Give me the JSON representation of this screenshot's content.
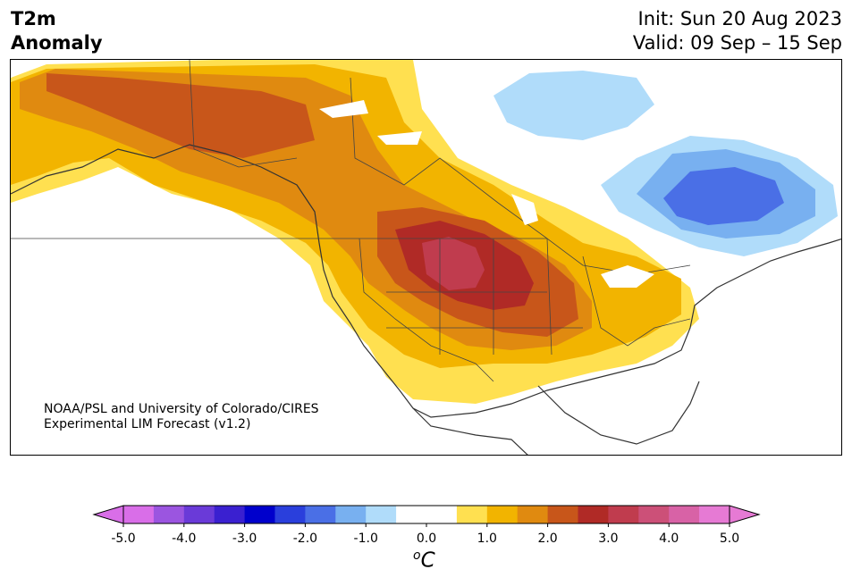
{
  "title": {
    "left_line1": "T2m",
    "left_line2": "Anomaly",
    "init": "Init: Sun 20 Aug 2023",
    "valid": "Valid: 09 Sep – 15 Sep"
  },
  "credit": {
    "line1": "NOAA/PSL and University of Colorado/CIRES",
    "line2": "Experimental LIM Forecast (v1.2)"
  },
  "colorbar": {
    "unit_base": "C",
    "unit_sup": "o",
    "colors": [
      "#d96ee8",
      "#9b55e0",
      "#6a3ad8",
      "#3a20d0",
      "#0000cc",
      "#2a3fdc",
      "#4a6fe6",
      "#78b0f0",
      "#b0dcfa",
      "#ffffff",
      "#ffffff",
      "#ffe050",
      "#f2b400",
      "#e08a10",
      "#c8561a",
      "#b02a26",
      "#c03c4e",
      "#cc5078",
      "#d862a6",
      "#e67ad4"
    ],
    "under_color": "#d96ee8",
    "over_color": "#e67ad4",
    "ticks": [
      "-5.0",
      "-4.0",
      "-3.0",
      "-2.0",
      "-1.0",
      "0.0",
      "1.0",
      "2.0",
      "3.0",
      "4.0",
      "5.0"
    ]
  },
  "legend_colors": {
    "plus_0_5": "#ffe050",
    "plus_1_0": "#f2b400",
    "plus_1_5": "#e08a10",
    "plus_2_0": "#c8561a",
    "plus_2_5": "#b02a26",
    "plus_3_0": "#c03c4e",
    "minus_0_5": "#b0dcfa",
    "minus_1_0": "#78b0f0",
    "minus_1_5": "#4a6fe6"
  }
}
